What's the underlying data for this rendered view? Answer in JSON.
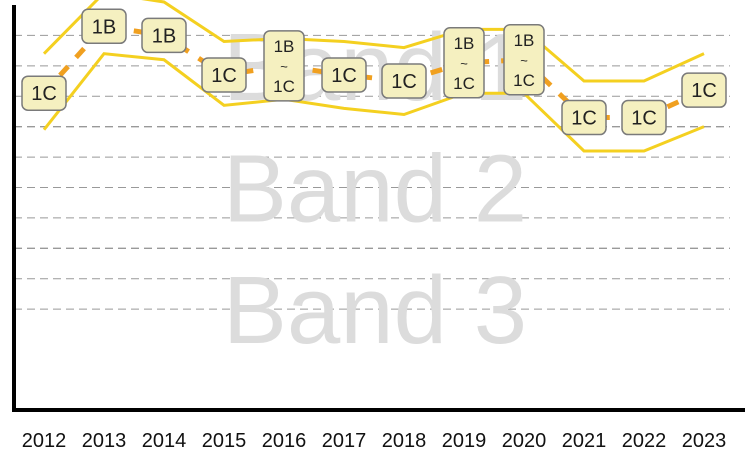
{
  "chart_data": {
    "type": "line",
    "title": "",
    "xlabel": "",
    "ylabel": "",
    "bands": [
      "Band 1",
      "Band 2",
      "Band 3"
    ],
    "years": [
      "2012",
      "2013",
      "2014",
      "2015",
      "2016",
      "2017",
      "2018",
      "2019",
      "2020",
      "2021",
      "2022",
      "2023"
    ],
    "ranking_labels": [
      "1C",
      "1B",
      "1B",
      "1C",
      "1B ~ 1C",
      "1C",
      "1C",
      "1B ~ 1C",
      "1B ~ 1C",
      "1C",
      "1C",
      "1C"
    ],
    "score_scale": "0 (bottom of Band 3) to 6 (top of Band 1)",
    "ylim": [
      0,
      6
    ],
    "central": [
      4.55,
      5.65,
      5.5,
      4.85,
      5.0,
      4.85,
      4.75,
      5.05,
      5.1,
      4.15,
      4.15,
      4.6
    ],
    "upper": [
      5.2,
      6.2,
      6.05,
      5.4,
      5.45,
      5.4,
      5.3,
      5.6,
      5.6,
      4.75,
      4.75,
      5.2
    ],
    "lower": [
      3.95,
      5.2,
      5.1,
      4.35,
      4.45,
      4.3,
      4.2,
      4.55,
      4.55,
      3.6,
      3.6,
      4.0
    ],
    "grid": true,
    "colors": {
      "central_line": "#f0a020",
      "interval_lines": "#f4d020",
      "node_fill": "#f5f0c0",
      "node_border": "#7a7a7a",
      "band_text": "#dcdcdc",
      "gridline": "#999999",
      "axis": "#000000"
    }
  }
}
